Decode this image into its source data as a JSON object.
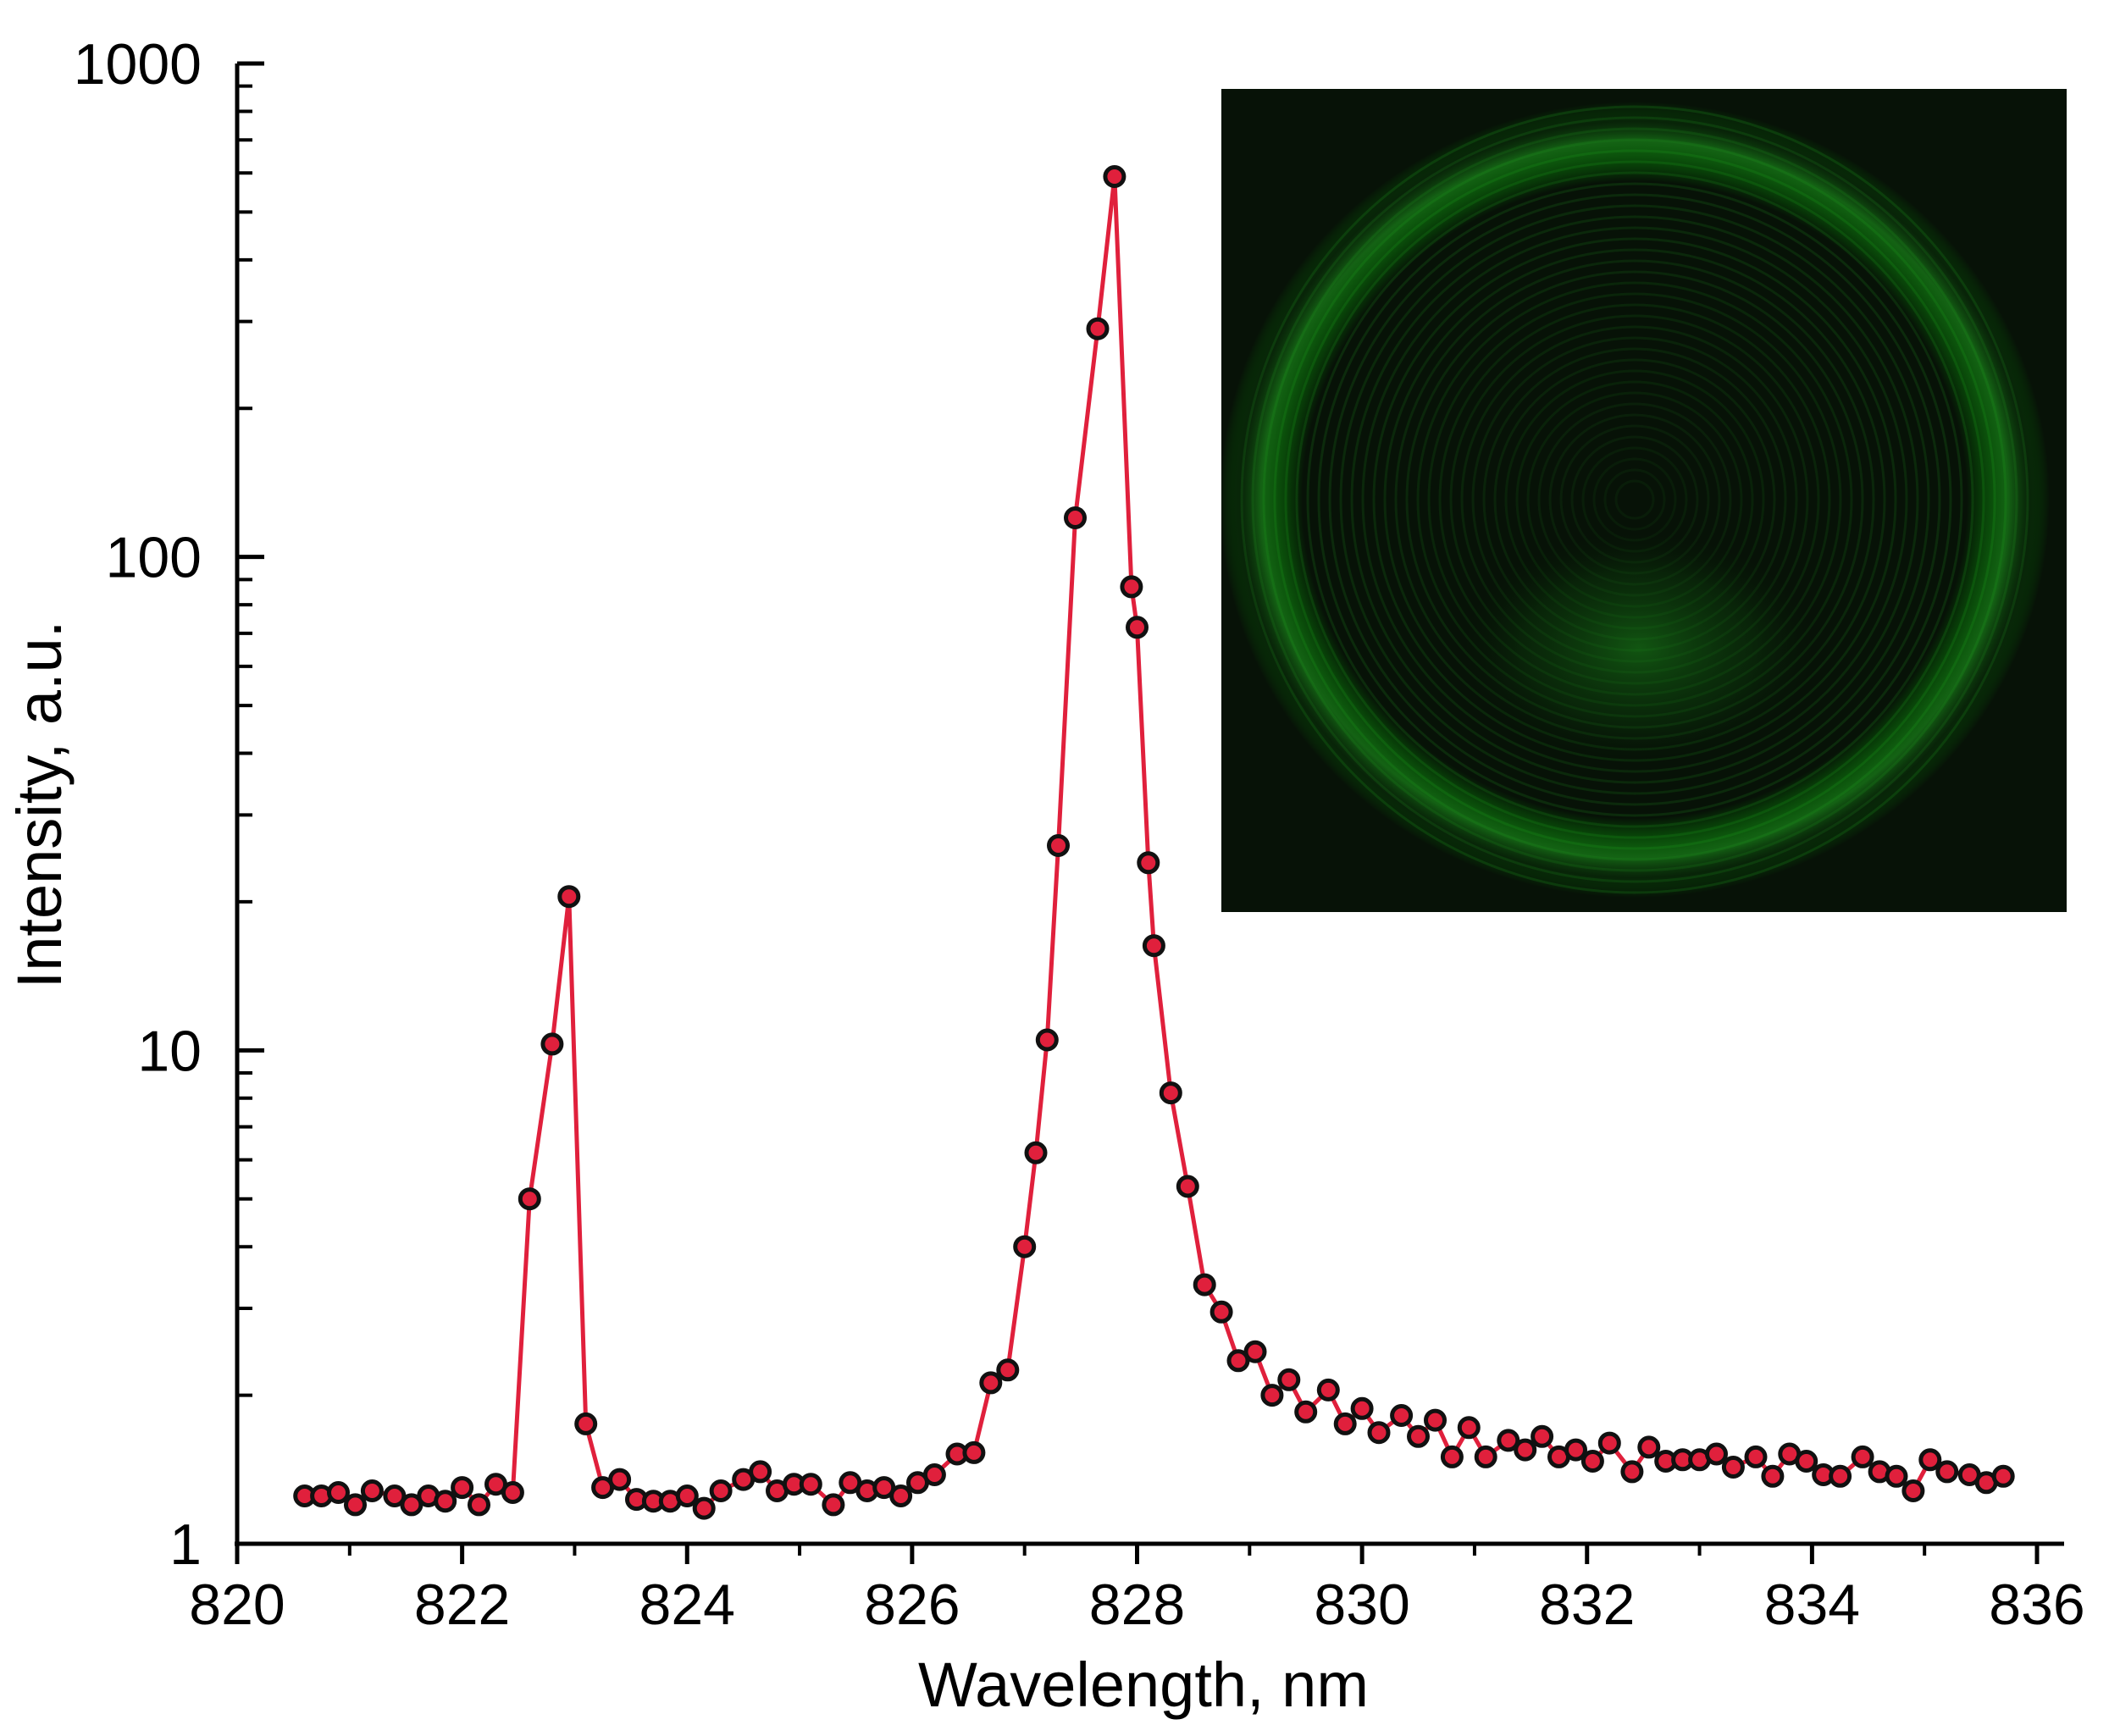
{
  "chart_data": {
    "type": "line",
    "title": "",
    "xlabel": "Wavelength, nm",
    "ylabel": "Intensity, a.u.",
    "x_scale": "linear",
    "y_scale": "log",
    "xlim": [
      820,
      836
    ],
    "ylim": [
      1,
      1000
    ],
    "x_ticks": [
      820,
      822,
      824,
      826,
      828,
      830,
      832,
      834,
      836
    ],
    "y_ticks": [
      1,
      10,
      100,
      1000
    ],
    "grid": false,
    "legend": "none",
    "line_color": "#e0203c",
    "marker_fill": "#e0203c",
    "marker_edge": "#111111",
    "series": [
      {
        "x": [
          820.6,
          820.75,
          820.9,
          821.05,
          821.2,
          821.4,
          821.55,
          821.7,
          821.85,
          822.0,
          822.15,
          822.3,
          822.45,
          822.6,
          822.8,
          822.95,
          823.1,
          823.25,
          823.4,
          823.55,
          823.7,
          823.85,
          824.0,
          824.15,
          824.3,
          824.5,
          824.65,
          824.8,
          824.95,
          825.1,
          825.3,
          825.45,
          825.6,
          825.75,
          825.9,
          826.05,
          826.2,
          826.4,
          826.55,
          826.7,
          826.85,
          827.0,
          827.1,
          827.2,
          827.3,
          827.45,
          827.65,
          827.8,
          827.95,
          828.0,
          828.1,
          828.15,
          828.3,
          828.45,
          828.6,
          828.75,
          828.9,
          829.05,
          829.2,
          829.35,
          829.5,
          829.7,
          829.85,
          830.0,
          830.15,
          830.35,
          830.5,
          830.65,
          830.8,
          830.95,
          831.1,
          831.3,
          831.45,
          831.6,
          831.75,
          831.9,
          832.05,
          832.2,
          832.4,
          832.55,
          832.7,
          832.85,
          833.0,
          833.15,
          833.3,
          833.5,
          833.65,
          833.8,
          833.95,
          834.1,
          834.25,
          834.45,
          834.6,
          834.75,
          834.9,
          835.05,
          835.2,
          835.4,
          835.55,
          835.7
        ],
        "y": [
          1.25,
          1.25,
          1.27,
          1.2,
          1.28,
          1.25,
          1.2,
          1.25,
          1.22,
          1.3,
          1.2,
          1.32,
          1.27,
          5.0,
          10.3,
          20.5,
          1.75,
          1.3,
          1.35,
          1.23,
          1.22,
          1.22,
          1.25,
          1.18,
          1.28,
          1.35,
          1.4,
          1.28,
          1.32,
          1.32,
          1.2,
          1.33,
          1.28,
          1.3,
          1.25,
          1.33,
          1.38,
          1.52,
          1.53,
          2.12,
          2.25,
          4.0,
          6.2,
          10.5,
          26.0,
          120.0,
          290.0,
          590.0,
          87.0,
          72.0,
          24.0,
          16.3,
          8.2,
          5.3,
          3.35,
          2.95,
          2.35,
          2.45,
          2.0,
          2.15,
          1.85,
          2.05,
          1.75,
          1.88,
          1.68,
          1.82,
          1.65,
          1.78,
          1.5,
          1.72,
          1.5,
          1.62,
          1.55,
          1.65,
          1.5,
          1.55,
          1.47,
          1.6,
          1.4,
          1.57,
          1.47,
          1.48,
          1.48,
          1.52,
          1.43,
          1.5,
          1.37,
          1.52,
          1.47,
          1.38,
          1.37,
          1.5,
          1.4,
          1.37,
          1.28,
          1.48,
          1.4,
          1.38,
          1.33,
          1.37
        ]
      }
    ]
  }
}
